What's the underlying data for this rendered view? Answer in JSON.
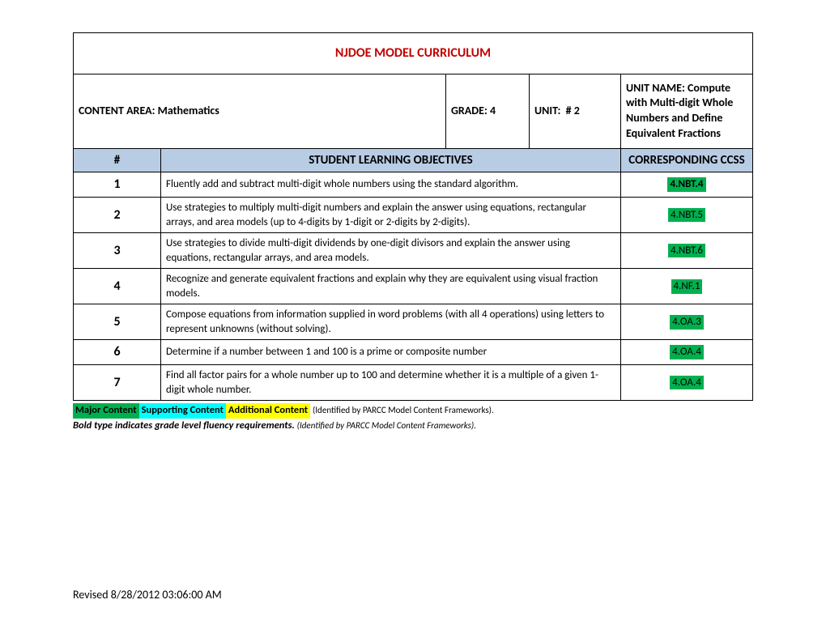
{
  "title": "NJDOE MODEL CURRICULUM",
  "colors": {
    "title_text": "#c00000",
    "header_bg": "#b8cce4",
    "major_bg": "#00b050",
    "supporting_bg": "#00ffff",
    "additional_bg": "#ffff00",
    "border": "#000000",
    "text": "#000000",
    "page_bg": "#ffffff"
  },
  "info": {
    "content_area_label": "CONTENT AREA:",
    "content_area_value": "Mathematics",
    "grade_label": "GRADE:",
    "grade_value": "4",
    "unit_label": "UNIT:",
    "unit_value": "# 2",
    "unit_name_label": "UNIT NAME:",
    "unit_name_value": "Compute with Multi-digit Whole Numbers and Define Equivalent Fractions"
  },
  "headers": {
    "num": "#",
    "objectives": "STUDENT LEARNING OBJECTIVES",
    "ccss": "CORRESPONDING CCSS"
  },
  "rows": [
    {
      "num": "1",
      "objective": "Fluently add and subtract multi-digit whole numbers using the standard algorithm.",
      "ccss": "4.NBT.4",
      "ccss_bg": "#00b050",
      "bold": true
    },
    {
      "num": "2",
      "objective": "Use strategies to multiply multi-digit numbers and explain the answer using equations, rectangular arrays, and area models (up to 4-digits by 1-digit or 2-digits by 2-digits).",
      "ccss": "4.NBT.5",
      "ccss_bg": "#00b050",
      "bold": false
    },
    {
      "num": "3",
      "objective": "Use strategies to divide multi-digit dividends by one-digit divisors and explain the answer using equations, rectangular arrays, and area models.",
      "ccss": "4.NBT.6",
      "ccss_bg": "#00b050",
      "bold": false
    },
    {
      "num": "4",
      "objective": "Recognize and generate equivalent fractions and explain why they are equivalent using visual fraction models.",
      "ccss": "4.NF.1",
      "ccss_bg": "#00b050",
      "bold": false
    },
    {
      "num": "5",
      "objective": "Compose equations from information supplied in word problems (with all 4 operations) using letters to represent unknowns (without solving).",
      "ccss": "4.OA.3",
      "ccss_bg": "#00b050",
      "bold": false
    },
    {
      "num": "6",
      "objective": "Determine if a number between 1 and 100 is a prime or composite number",
      "ccss": "4.OA.4",
      "ccss_bg": "#00b050",
      "bold": false
    },
    {
      "num": "7",
      "objective": "Find all factor pairs for a whole number up to 100 and determine whether it is a multiple of a given 1-digit whole number.",
      "ccss": "4.OA.4",
      "ccss_bg": "#00b050",
      "bold": false
    }
  ],
  "legend": {
    "major": "Major Content",
    "supporting": "Supporting Content",
    "additional": "Additional Content",
    "paren": "(Identified by PARCC Model Content Frameworks).",
    "fluency": "Bold type indicates grade level fluency requirements.",
    "fluency_paren": "(Identified by PARCC Model Content Frameworks)."
  },
  "revised": "Revised 8/28/2012 03:06:00 AM"
}
